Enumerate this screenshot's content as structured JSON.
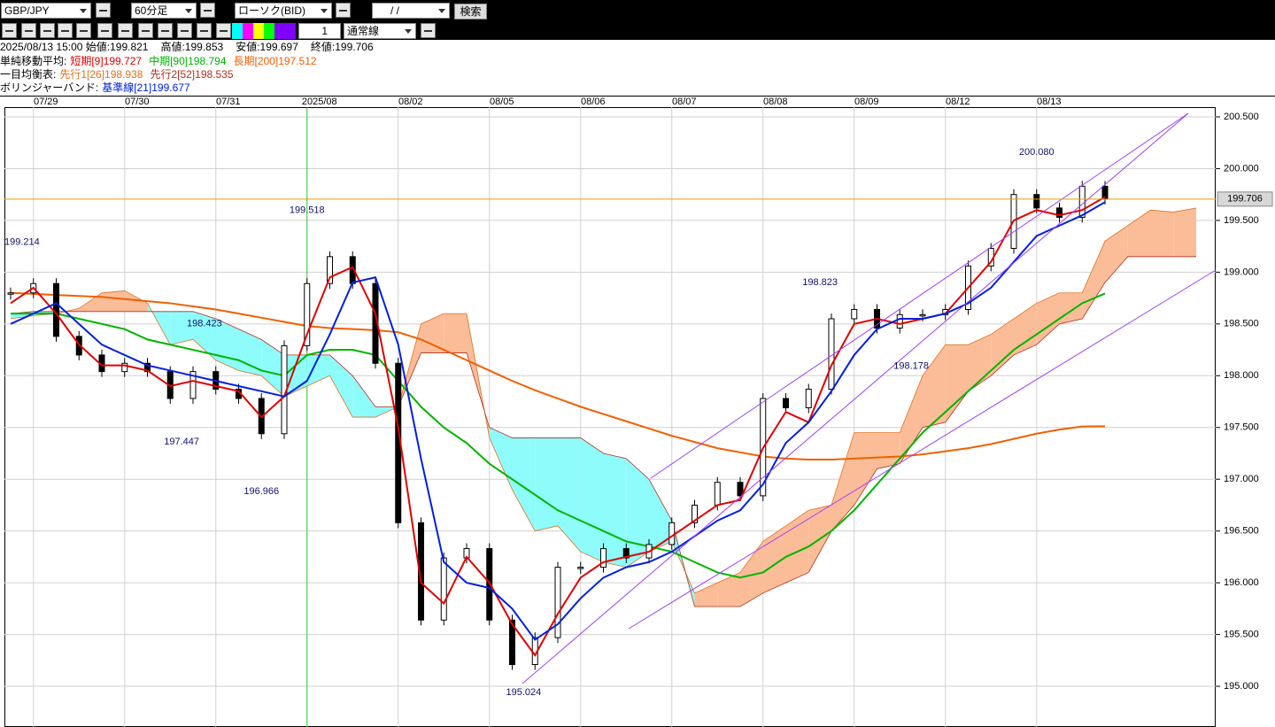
{
  "toolbar": {
    "symbol": "GBP/JPY",
    "timeframe": "60分足",
    "chart_kind": "ローソク(BID)",
    "date": "/ /",
    "search": "検索",
    "count": "1",
    "line_style": "通常線"
  },
  "info": [
    "2025/08/13 15:00 始値:199.821",
    "高値:199.853",
    "安値:199.697",
    "終値:199.706"
  ],
  "legend_groups": [
    "単純移動平均:",
    "一目均衡表:",
    "ボリンジャーバンド:"
  ],
  "chart_data": {
    "type": "candlestick",
    "categories": [
      null,
      "07/29",
      null,
      null,
      null,
      "07/30",
      null,
      null,
      null,
      "07/31",
      null,
      null,
      null,
      "2025/08",
      null,
      null,
      null,
      "08/02",
      null,
      null,
      null,
      "08/05",
      null,
      null,
      null,
      "08/06",
      null,
      null,
      null,
      "08/07",
      null,
      null,
      null,
      "08/08",
      null,
      null,
      null,
      "08/09",
      null,
      null,
      null,
      "08/12",
      null,
      null,
      null,
      "08/13",
      null,
      null,
      null,
      null,
      null,
      null,
      null
    ],
    "values": [
      198.8,
      198.89,
      198.38,
      198.2,
      198.04,
      198.12,
      198.04,
      197.78,
      198.04,
      197.87,
      197.78,
      197.44,
      198.29,
      198.89,
      199.15,
      198.89,
      198.12,
      196.58,
      195.64,
      196.24,
      196.33,
      195.64,
      195.21,
      195.47,
      196.15,
      196.15,
      196.33,
      196.24,
      196.37,
      196.58,
      196.75,
      196.97,
      196.84,
      197.78,
      197.69,
      197.87,
      198.55,
      198.64,
      198.46,
      198.59,
      198.59,
      198.64,
      199.06,
      199.23,
      199.75,
      199.62,
      199.53,
      199.83,
      199.706,
      null,
      null,
      null,
      null
    ],
    "series": [
      {
        "name": "短期[9]",
        "legend_value": 199.727,
        "color": "#e00000",
        "values": [
          198.7,
          198.85,
          198.6,
          198.3,
          198.1,
          198.1,
          198.05,
          197.9,
          197.95,
          197.9,
          197.85,
          197.6,
          197.8,
          198.4,
          198.95,
          199.05,
          198.6,
          197.5,
          196.0,
          195.8,
          196.25,
          196.0,
          195.6,
          195.3,
          195.7,
          196.05,
          196.2,
          196.25,
          196.3,
          196.45,
          196.6,
          196.75,
          196.8,
          197.3,
          197.65,
          197.55,
          198.1,
          198.5,
          198.55,
          198.5,
          198.55,
          198.6,
          198.85,
          199.1,
          199.5,
          199.6,
          199.55,
          199.6,
          199.727,
          null,
          null,
          null,
          null
        ]
      },
      {
        "name": "中期[90]",
        "legend_value": 198.794,
        "color": "#00b400",
        "values": [
          198.6,
          198.6,
          198.6,
          198.55,
          198.5,
          198.45,
          198.35,
          198.3,
          198.25,
          198.2,
          198.15,
          198.05,
          198.0,
          198.2,
          198.25,
          198.25,
          198.2,
          197.95,
          197.7,
          197.5,
          197.35,
          197.15,
          197.0,
          196.85,
          196.7,
          196.6,
          196.5,
          196.4,
          196.35,
          196.3,
          196.2,
          196.1,
          196.05,
          196.1,
          196.25,
          196.35,
          196.5,
          196.7,
          196.95,
          197.2,
          197.45,
          197.65,
          197.85,
          198.05,
          198.25,
          198.4,
          198.55,
          198.7,
          198.794,
          null,
          null,
          null,
          null
        ]
      },
      {
        "name": "長期[200]",
        "legend_value": 197.512,
        "color": "#f06000",
        "values": [
          198.8,
          198.79,
          198.78,
          198.77,
          198.76,
          198.74,
          198.72,
          198.7,
          198.67,
          198.64,
          198.6,
          198.56,
          198.52,
          198.48,
          198.46,
          198.45,
          198.44,
          198.42,
          198.35,
          198.25,
          198.15,
          198.05,
          197.95,
          197.86,
          197.78,
          197.7,
          197.63,
          197.56,
          197.49,
          197.42,
          197.36,
          197.3,
          197.26,
          197.22,
          197.2,
          197.19,
          197.19,
          197.2,
          197.21,
          197.22,
          197.24,
          197.27,
          197.3,
          197.34,
          197.39,
          197.44,
          197.48,
          197.51,
          197.512,
          null,
          null,
          null,
          null
        ]
      },
      {
        "name": "先行1[26]",
        "legend_value": 198.938,
        "color": "#e07020",
        "values": [
          198.55,
          198.58,
          198.6,
          198.65,
          198.8,
          198.82,
          198.7,
          198.3,
          198.35,
          198.15,
          198.05,
          198.0,
          197.8,
          197.9,
          198.0,
          197.6,
          197.6,
          197.7,
          198.5,
          198.6,
          198.6,
          197.4,
          196.9,
          196.5,
          196.55,
          196.3,
          196.2,
          196.15,
          196.3,
          196.4,
          195.9,
          196.0,
          196.1,
          196.4,
          196.55,
          196.7,
          196.75,
          197.45,
          197.45,
          197.45,
          198.0,
          198.3,
          198.3,
          198.4,
          198.55,
          198.7,
          198.8,
          198.8,
          199.3,
          199.45,
          199.6,
          199.58,
          199.62
        ]
      },
      {
        "name": "先行2[52]",
        "legend_value": 198.535,
        "color": "#b03020",
        "values": [
          198.6,
          198.62,
          198.62,
          198.62,
          198.62,
          198.62,
          198.62,
          198.62,
          198.62,
          198.55,
          198.45,
          198.35,
          198.2,
          198.2,
          198.2,
          198.0,
          197.7,
          197.7,
          198.22,
          198.22,
          198.22,
          197.5,
          197.4,
          197.4,
          197.4,
          197.4,
          197.25,
          197.2,
          197.0,
          196.6,
          195.77,
          195.77,
          195.77,
          195.9,
          196.0,
          196.1,
          196.5,
          196.75,
          197.1,
          197.15,
          197.5,
          197.55,
          197.85,
          198.0,
          198.2,
          198.3,
          198.5,
          198.55,
          198.9,
          199.15,
          199.15,
          199.15,
          199.15
        ]
      },
      {
        "name": "基準線[21]",
        "legend_value": 199.677,
        "color": "#0020e0",
        "values": [
          198.5,
          198.6,
          198.7,
          198.5,
          198.3,
          198.2,
          198.1,
          198.05,
          198.0,
          197.95,
          197.9,
          197.85,
          197.8,
          197.95,
          198.4,
          198.9,
          198.95,
          198.3,
          197.2,
          196.2,
          196.0,
          195.95,
          195.75,
          195.45,
          195.6,
          195.85,
          196.05,
          196.15,
          196.2,
          196.3,
          196.45,
          196.6,
          196.7,
          196.95,
          197.35,
          197.55,
          197.85,
          198.2,
          198.45,
          198.55,
          198.55,
          198.6,
          198.7,
          198.85,
          199.1,
          199.35,
          199.45,
          199.55,
          199.677,
          null,
          null,
          null,
          null
        ]
      }
    ],
    "ylim": [
      194.607,
      200.594
    ],
    "yticks": [
      {
        "value": 195,
        "label": "195.000"
      },
      {
        "value": 195.5,
        "label": "195.500"
      },
      {
        "value": 196,
        "label": "196.000"
      },
      {
        "value": 196.5,
        "label": "196.500"
      },
      {
        "value": 197,
        "label": "197.000"
      },
      {
        "value": 197.5,
        "label": "197.500"
      },
      {
        "value": 198,
        "label": "198.000"
      },
      {
        "value": 198.5,
        "label": "198.500"
      },
      {
        "value": 199,
        "label": "199.000"
      },
      {
        "value": 199.5,
        "label": "199.500"
      },
      {
        "value": 200,
        "label": "200.000"
      },
      {
        "value": 200.5,
        "label": "200.500"
      }
    ],
    "grid": true,
    "last_price": {
      "value": 199.706,
      "label": "199.706"
    },
    "annotations": [
      {
        "x": 0.5,
        "y": 199.214,
        "label": "199.214"
      },
      {
        "x": 7.5,
        "y": 197.447,
        "label": "197.447"
      },
      {
        "x": 8.5,
        "y": 198.423,
        "label": "198.423"
      },
      {
        "x": 11,
        "y": 196.966,
        "label": "196.966"
      },
      {
        "x": 13,
        "y": 199.518,
        "label": "199.518"
      },
      {
        "x": 22.5,
        "y": 195.024,
        "label": "195.024"
      },
      {
        "x": 35.5,
        "y": 198.823,
        "label": "198.823"
      },
      {
        "x": 39.5,
        "y": 198.178,
        "label": "198.178"
      },
      {
        "x": 45,
        "y": 200.08,
        "label": "200.080"
      }
    ]
  }
}
